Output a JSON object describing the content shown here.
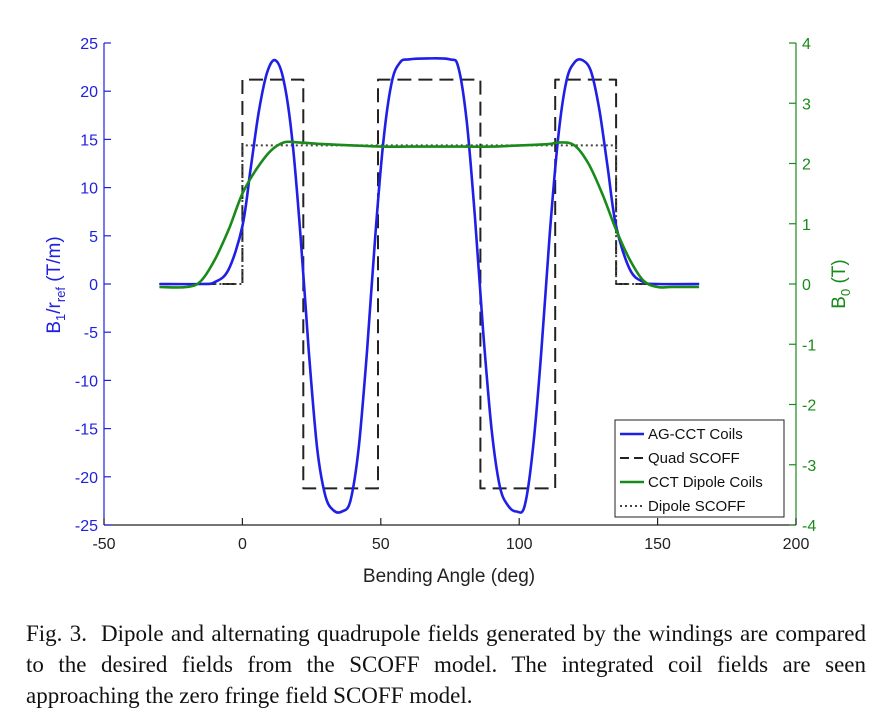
{
  "chart_data": {
    "type": "line",
    "title": "",
    "xlabel": "Bending Angle (deg)",
    "ylabel_left": {
      "main": "B",
      "sub1": "1",
      "mid": "/r",
      "sub2": "ref",
      "unit": " (T/m)"
    },
    "ylabel_right": {
      "main": "B",
      "sub": "0",
      "unit": " (T)"
    },
    "xlim": [
      -50,
      200
    ],
    "ylim_left": [
      -25,
      25
    ],
    "ylim_right": [
      -4,
      4
    ],
    "x_ticks": [
      "-50",
      "0",
      "50",
      "100",
      "150",
      "200"
    ],
    "y_ticks_left": [
      "25",
      "20",
      "15",
      "10",
      "5",
      "0",
      "-5",
      "-10",
      "-15",
      "-20",
      "-25"
    ],
    "y_ticks_right": [
      "4",
      "3",
      "2",
      "1",
      "0",
      "-1",
      "-2",
      "-3",
      "-4"
    ],
    "grid": false,
    "legend_position": "bottom-right",
    "colors": {
      "left_axis": "#2020e0",
      "right_axis": "#1a8a1a",
      "ag_cct": "#1f1fe6",
      "quad_scoff": "#222222",
      "cct_dipole": "#1a8a1a",
      "dipole_scoff": "#444444"
    },
    "series": [
      {
        "name": "AG-CCT Coils",
        "axis": "left",
        "style": "solid",
        "x": [
          -30,
          -15,
          -10,
          -5,
          0,
          3,
          6,
          9,
          12,
          15,
          18,
          21,
          24,
          27,
          30,
          33,
          36,
          39,
          42,
          45,
          48,
          51,
          54,
          57,
          60,
          67,
          75,
          78,
          81,
          84,
          87,
          90,
          93,
          96,
          99,
          102,
          105,
          108,
          111,
          114,
          117,
          120,
          123,
          126,
          129,
          132,
          135,
          140,
          145,
          150,
          165
        ],
        "y": [
          0,
          0,
          0.2,
          1.5,
          6,
          12,
          18,
          22,
          23.2,
          21,
          15,
          5,
          -7,
          -17,
          -22,
          -23.5,
          -23.6,
          -22.5,
          -17,
          -7,
          5,
          15,
          21,
          23,
          23.3,
          23.4,
          23.3,
          22.5,
          17,
          7,
          -5,
          -15,
          -21,
          -23,
          -23.6,
          -23,
          -17,
          -7,
          5,
          15,
          21,
          23,
          23.2,
          22,
          18,
          12,
          6,
          1.5,
          0.2,
          0,
          0
        ]
      },
      {
        "name": "Quad SCOFF",
        "axis": "left",
        "style": "dashed",
        "x": [
          -30,
          0,
          0,
          22,
          22,
          49,
          49,
          86,
          86,
          113,
          113,
          135,
          135,
          165
        ],
        "y": [
          0,
          0,
          21.2,
          21.2,
          -21.2,
          -21.2,
          21.2,
          21.2,
          -21.2,
          -21.2,
          21.2,
          21.2,
          0,
          0
        ]
      },
      {
        "name": "CCT Dipole Coils",
        "axis": "right",
        "style": "solid",
        "x": [
          -30,
          -20,
          -15,
          -10,
          -5,
          0,
          5,
          10,
          15,
          20,
          30,
          40,
          50,
          60,
          70,
          80,
          90,
          100,
          110,
          115,
          120,
          125,
          130,
          135,
          140,
          145,
          150,
          155,
          165
        ],
        "y": [
          -0.05,
          -0.05,
          0.05,
          0.4,
          0.9,
          1.5,
          1.9,
          2.2,
          2.35,
          2.35,
          2.32,
          2.3,
          2.28,
          2.28,
          2.28,
          2.28,
          2.28,
          2.3,
          2.32,
          2.35,
          2.3,
          2.0,
          1.5,
          0.9,
          0.4,
          0.05,
          -0.05,
          -0.05,
          -0.05
        ]
      },
      {
        "name": "Dipole SCOFF",
        "axis": "right",
        "style": "dotted",
        "x": [
          -30,
          0,
          0,
          135,
          135,
          165
        ],
        "y": [
          0,
          0,
          2.3,
          2.3,
          0,
          0
        ]
      }
    ]
  },
  "caption": {
    "label": "Fig. 3.",
    "text": "Dipole and alternating quadrupole fields generated by the windings are compared to the desired fields from the SCOFF model. The integrated coil fields are seen approaching the zero fringe field SCOFF model."
  }
}
